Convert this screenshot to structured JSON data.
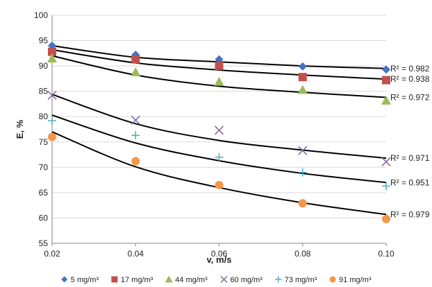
{
  "chart_data": {
    "type": "scatter",
    "xlabel": "v, m/s",
    "ylabel": "E, %",
    "xlim": [
      0.02,
      0.1
    ],
    "ylim": [
      55,
      100
    ],
    "x_ticks": [
      "0.02",
      "0.04",
      "0.06",
      "0.08",
      "0.10"
    ],
    "y_ticks": [
      "55",
      "60",
      "65",
      "70",
      "75",
      "80",
      "85",
      "90",
      "95",
      "100"
    ],
    "grid": "horizontal",
    "legend_position": "bottom",
    "x": [
      0.02,
      0.04,
      0.06,
      0.08,
      0.1
    ],
    "series": [
      {
        "name": "5 mg/m³",
        "marker": "diamond",
        "color": "#4472C4",
        "values": [
          94.0,
          92.2,
          91.3,
          89.9,
          89.3
        ],
        "trendline": [
          94.0,
          91.7,
          90.8,
          90.0,
          89.5
        ],
        "r2_label": "R² = 0.982"
      },
      {
        "name": "17 mg/m³",
        "marker": "square",
        "color": "#C0504D",
        "values": [
          92.8,
          91.3,
          90.0,
          87.8,
          87.2
        ],
        "trendline": [
          93.2,
          90.6,
          89.2,
          88.2,
          87.4
        ],
        "r2_label": "R² = 0.938"
      },
      {
        "name": "44 mg/m³",
        "marker": "triangle",
        "color": "#9BBB59",
        "values": [
          91.5,
          88.8,
          86.9,
          85.3,
          83.2
        ],
        "trendline": [
          92.0,
          88.2,
          86.0,
          84.8,
          83.8
        ],
        "r2_label": "R² = 0.972"
      },
      {
        "name": "60 mg/m³",
        "marker": "x",
        "color": "#8064A2",
        "values": [
          84.2,
          79.3,
          77.3,
          73.3,
          71.1
        ],
        "trendline": [
          84.4,
          78.6,
          75.3,
          73.4,
          71.8
        ],
        "r2_label": "R² = 0.971"
      },
      {
        "name": "73 mg/m³",
        "marker": "plus",
        "color": "#4BACC6",
        "values": [
          79.2,
          76.3,
          72.0,
          69.0,
          66.3
        ],
        "trendline": [
          80.3,
          74.8,
          71.3,
          68.8,
          67.0
        ],
        "r2_label": "R² = 0.951"
      },
      {
        "name": "91 mg/m³",
        "marker": "circle",
        "color": "#F79646",
        "values": [
          76.0,
          71.2,
          66.5,
          62.9,
          59.8
        ],
        "trendline": [
          77.0,
          70.1,
          66.0,
          63.0,
          60.7
        ],
        "r2_label": "R² = 0.979"
      }
    ]
  }
}
